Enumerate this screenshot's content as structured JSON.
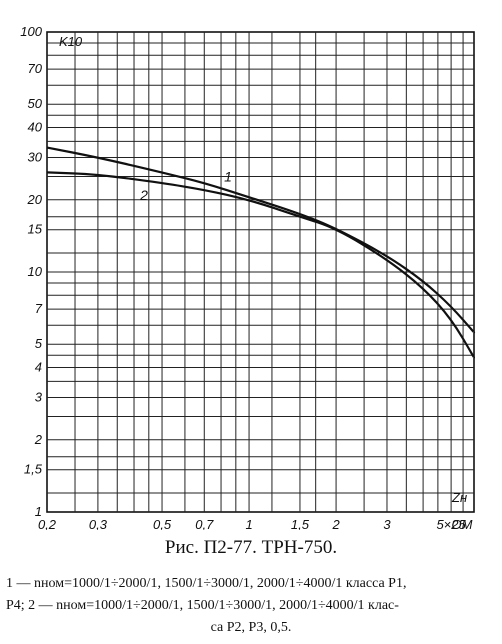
{
  "chart_data": {
    "type": "line",
    "title": "",
    "ylabel": "K10",
    "xlabel": "Zн",
    "xlabel_unit": "ОМ",
    "x_scale": "log",
    "y_scale": "log",
    "xlim": [
      0.2,
      6
    ],
    "ylim": [
      1,
      100
    ],
    "grid": true,
    "x_ticks": [
      "0,2",
      "0,3",
      "0,5",
      "0,7",
      "1",
      "1,5",
      "2",
      "3",
      "5×25"
    ],
    "y_ticks": [
      "1",
      "1,5",
      "2",
      "3",
      "4",
      "5",
      "7",
      "10",
      "15",
      "20",
      "30",
      "40",
      "50",
      "70",
      "100"
    ],
    "series": [
      {
        "name": "1",
        "x": [
          0.2,
          0.3,
          0.5,
          0.7,
          1,
          1.5,
          2,
          3,
          4,
          5,
          6
        ],
        "y": [
          33,
          30,
          26,
          23.5,
          20.5,
          17.5,
          15.2,
          11.7,
          9.2,
          7.2,
          5.6
        ]
      },
      {
        "name": "2",
        "x": [
          0.2,
          0.3,
          0.5,
          0.7,
          1,
          1.5,
          2,
          3,
          4,
          5,
          6
        ],
        "y": [
          26,
          25.5,
          23.5,
          22,
          20,
          17,
          15.2,
          11.3,
          8.6,
          6.4,
          4.4
        ]
      }
    ]
  },
  "caption": {
    "title": "Рис. П2-77. ТРН-750.",
    "line1": "1 — nном=1000/1÷2000/1,   1500/1÷3000/1,   2000/1÷4000/1   класса   P1,",
    "line2": "P4;   2 — nном=1000/1÷2000/1,   1500/1÷3000/1,   2000/1÷4000/1   клас-",
    "line3": "са P2, P3, 0,5."
  }
}
